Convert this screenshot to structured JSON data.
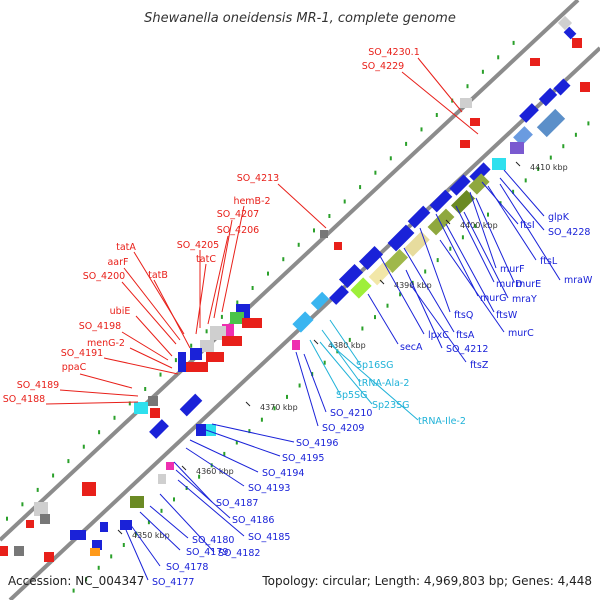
{
  "title": "Shewanella oneidensis MR-1, complete genome",
  "footer": {
    "accession": "Accession: NC_004347",
    "summary": "Topology: circular; Length: 4,969,803 bp; Genes: 4,448"
  },
  "colors": {
    "forward_label": "#e8201a",
    "reverse_label": "#1a22d8",
    "rna_label": "#1fb2d8",
    "backbone": "#8c8c8c"
  },
  "ticks": [
    "4350 kbp",
    "4360 kbp",
    "4370 kbp",
    "4380 kbp",
    "4390 kbp",
    "4400 kbp",
    "4410 kbp"
  ],
  "top_labels": [
    "SO_4230.1",
    "SO_4229",
    "SO_4213",
    "hemB-2",
    "SO_4207",
    "SO_4206",
    "SO_4205",
    "tatC",
    "tatA",
    "aarF",
    "tatB",
    "SO_4200",
    "ubiE",
    "SO_4198",
    "menG-2",
    "SO_4191",
    "ppaC",
    "SO_4189",
    "SO_4188"
  ],
  "bottom_labels": [
    "glpK",
    "SO_4228",
    "ftsI",
    "ftsL",
    "mraW",
    "murF",
    "murE",
    "murD",
    "mraY",
    "murG",
    "ftsW",
    "ftsQ",
    "murC",
    "ftsA",
    "lpxC",
    "SO_4212",
    "secA",
    "ftsZ",
    "SO_4210",
    "SO_4209",
    "SO_4196",
    "SO_4195",
    "SO_4194",
    "SO_4193",
    "SO_4187",
    "SO_4186",
    "SO_4185",
    "SO_4182",
    "SO_4180",
    "SO_4179",
    "SO_4178",
    "SO_4177"
  ],
  "rna_labels": [
    "Sp16SG",
    "tRNA-Ala-2",
    "Sp5SG",
    "Sp23SG",
    "tRNA-Ile-2"
  ]
}
